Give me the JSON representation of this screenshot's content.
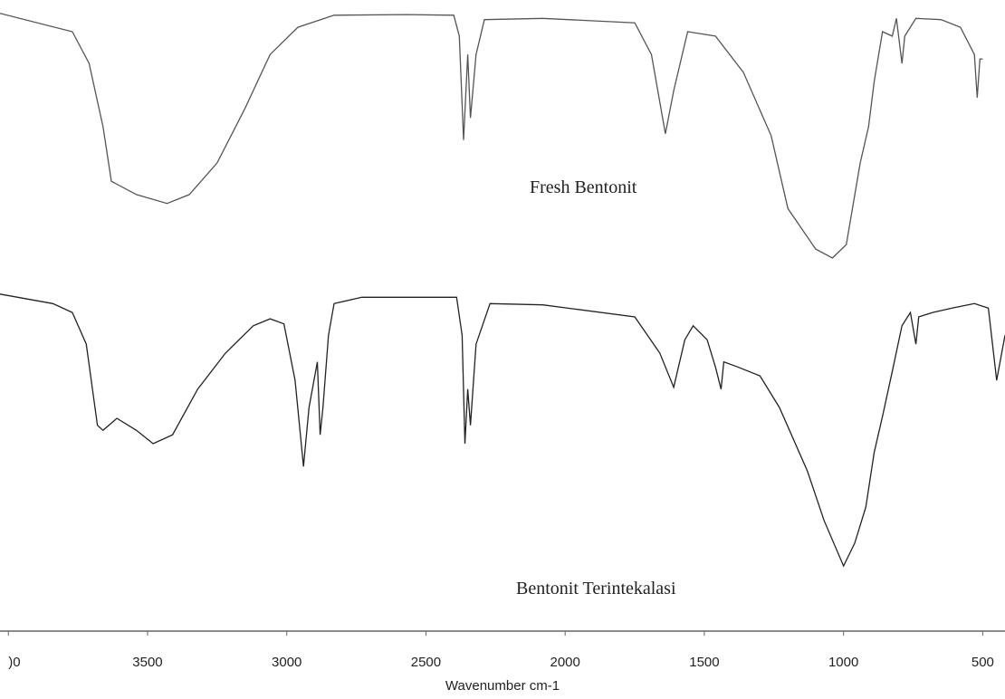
{
  "chart_data": {
    "type": "line",
    "xlabel": "Wavenumber cm-1",
    "xlim": [
      4030,
      420
    ],
    "ylim": [
      0,
      100
    ],
    "xticks": [
      {
        "value": 4000,
        "label": ")0"
      },
      3500,
      3000,
      2500,
      2000,
      1500,
      1000,
      500
    ],
    "series": [
      {
        "name": "Fresh Bentonit",
        "color": "#555555",
        "x": [
          4030,
          3770,
          3710,
          3660,
          3630,
          3540,
          3430,
          3350,
          3250,
          3150,
          3060,
          2960,
          2830,
          2570,
          2400,
          2380,
          2365,
          2350,
          2340,
          2320,
          2290,
          2080,
          1750,
          1690,
          1640,
          1610,
          1560,
          1460,
          1360,
          1260,
          1200,
          1100,
          1040,
          990,
          940,
          910,
          890,
          860,
          825,
          810,
          790,
          780,
          740,
          650,
          580,
          530,
          520,
          510,
          500
        ],
        "values": [
          97.9,
          95,
          90,
          80,
          71.4,
          69.3,
          67.9,
          69.3,
          74.3,
          82.9,
          91.4,
          95.7,
          97.6,
          97.7,
          97.6,
          94.3,
          77.9,
          91.4,
          81.4,
          91.4,
          96.9,
          97.1,
          96.4,
          91.4,
          78.9,
          85.7,
          95,
          94.3,
          88.6,
          78.6,
          67.1,
          60.7,
          59.3,
          61.4,
          74.3,
          80,
          87.1,
          95,
          94.3,
          97.1,
          90,
          94.3,
          97.1,
          96.9,
          95.7,
          91.4,
          84.6,
          90.7,
          90.7
        ]
      },
      {
        "name": "Bentonit Terintekalasi",
        "color": "#222222",
        "x": [
          4030,
          3840,
          3770,
          3720,
          3680,
          3660,
          3610,
          3540,
          3480,
          3410,
          3320,
          3220,
          3120,
          3060,
          3010,
          2970,
          2940,
          2920,
          2890,
          2880,
          2870,
          2850,
          2830,
          2730,
          2390,
          2370,
          2360,
          2350,
          2340,
          2320,
          2270,
          2080,
          1750,
          1660,
          1610,
          1570,
          1540,
          1490,
          1460,
          1440,
          1430,
          1380,
          1300,
          1230,
          1130,
          1070,
          1000,
          960,
          920,
          890,
          860,
          825,
          790,
          760,
          740,
          730,
          680,
          610,
          530,
          480,
          450,
          420
        ],
        "values": [
          53.6,
          52.1,
          50.7,
          45.7,
          32.9,
          32.1,
          34,
          32.1,
          30,
          31.4,
          38.6,
          44.3,
          48.6,
          49.7,
          48.9,
          40,
          26.4,
          35.7,
          42.9,
          31.4,
          35.7,
          47.1,
          52.1,
          53.1,
          53.1,
          47.1,
          30,
          38.6,
          32.9,
          45.7,
          52.1,
          51.9,
          50,
          44.3,
          38.9,
          46.4,
          48.6,
          46.4,
          42.1,
          38.6,
          42.9,
          42.1,
          40.7,
          35.7,
          25.7,
          17.9,
          10.7,
          14.3,
          20,
          28.6,
          34.3,
          41.4,
          48.6,
          50.7,
          45.7,
          50,
          50.7,
          51.4,
          52.1,
          51.4,
          40,
          47.1
        ]
      }
    ]
  }
}
